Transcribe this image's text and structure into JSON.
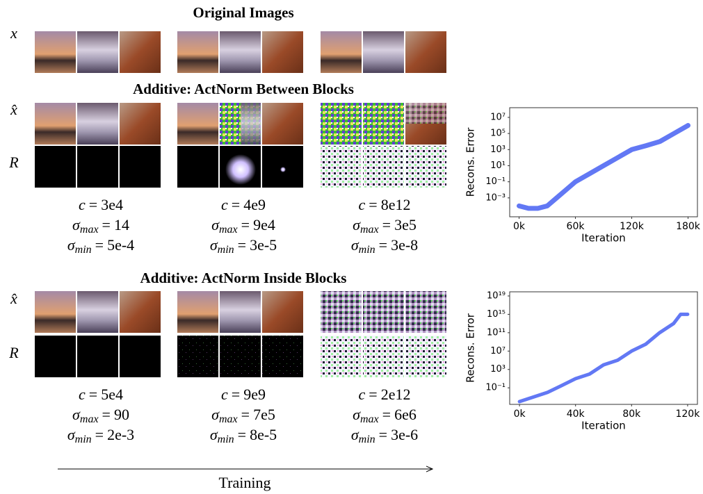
{
  "figure": {
    "titles": [
      "Original Images",
      "Additive: ActNorm Between Blocks",
      "Additive: ActNorm Inside Blocks"
    ],
    "row_labels": {
      "x": "x",
      "x_hat": "x̂",
      "R": "R"
    },
    "symbols": {
      "c": "c",
      "sigma": "σ",
      "max": "max",
      "min": "min",
      "equals": "="
    },
    "stats": [
      [
        {
          "c": "3e4",
          "sigma_max": "14",
          "sigma_min": "5e-4"
        },
        {
          "c": "4e9",
          "sigma_max": "9e4",
          "sigma_min": "3e-5"
        },
        {
          "c": "8e12",
          "sigma_max": "3e5",
          "sigma_min": "3e-8"
        }
      ],
      [
        {
          "c": "5e4",
          "sigma_max": "90",
          "sigma_min": "2e-3"
        },
        {
          "c": "9e9",
          "sigma_max": "7e5",
          "sigma_min": "8e-5"
        },
        {
          "c": "2e12",
          "sigma_max": "6e6",
          "sigma_min": "3e-6"
        }
      ]
    ],
    "footer": "Training"
  },
  "chart_data": [
    {
      "type": "line",
      "x_label": "Iteration",
      "y_label": "Recons. Error",
      "y_scale": "log",
      "xlim": [
        -10000,
        190000
      ],
      "xticks": [
        {
          "value": 0,
          "label": "0k"
        },
        {
          "value": 60000,
          "label": "60k"
        },
        {
          "value": 120000,
          "label": "120k"
        },
        {
          "value": 180000,
          "label": "180k"
        }
      ],
      "ylim": [
        4.5e-06,
        160000000
      ],
      "yticks": [
        {
          "value": 0.001,
          "label": "10⁻³"
        },
        {
          "value": 0.1,
          "label": "10⁻¹"
        },
        {
          "value": 10,
          "label": "10¹"
        },
        {
          "value": 1000,
          "label": "10³"
        },
        {
          "value": 100000,
          "label": "10⁵"
        },
        {
          "value": 10000000,
          "label": "10⁷"
        }
      ],
      "series": [
        {
          "color": "#1f3ff0",
          "x": [
            0,
            10000,
            20000,
            30000,
            40000,
            50000,
            60000,
            75000,
            90000,
            105000,
            120000,
            135000,
            150000,
            165000,
            180000
          ],
          "values": [
            0.0001,
            5e-05,
            5e-05,
            0.0001,
            0.001,
            0.01,
            0.1,
            1,
            10,
            100,
            1000,
            3000,
            10000,
            100000,
            1000000
          ]
        }
      ]
    },
    {
      "type": "line",
      "x_label": "Iteration",
      "y_label": "Recons. Error",
      "y_scale": "log",
      "xlim": [
        -7000,
        127000
      ],
      "xticks": [
        {
          "value": 0,
          "label": "0k"
        },
        {
          "value": 40000,
          "label": "40k"
        },
        {
          "value": 80000,
          "label": "80k"
        },
        {
          "value": 120000,
          "label": "120k"
        }
      ],
      "ylim": [
        2.5e-05,
        80000000000000000000
      ],
      "yticks": [
        {
          "value": 0.1,
          "label": "10⁻¹"
        },
        {
          "value": 1000,
          "label": "10³"
        },
        {
          "value": 10000000,
          "label": "10⁷"
        },
        {
          "value": 100000000000,
          "label": "10¹¹"
        },
        {
          "value": 1000000000000000,
          "label": "10¹⁵"
        },
        {
          "value": 10000000000000000000,
          "label": "10¹⁹"
        }
      ],
      "series": [
        {
          "color": "#1f3ff0",
          "x": [
            0,
            10000,
            20000,
            30000,
            40000,
            50000,
            60000,
            70000,
            80000,
            90000,
            100000,
            110000,
            115000,
            120000
          ],
          "values": [
            0.0001,
            0.001,
            0.01,
            0.3,
            10,
            100,
            10000,
            100000,
            10000000,
            300000000,
            100000000000,
            10000000000000,
            1000000000000000,
            1000000000000000
          ]
        }
      ]
    }
  ]
}
